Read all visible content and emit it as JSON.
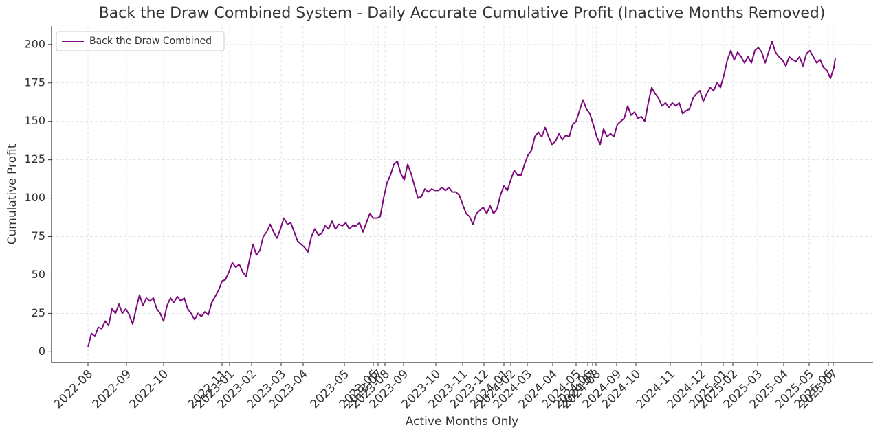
{
  "chart_data": {
    "type": "line",
    "title": "Back the Draw Combined System - Daily Accurate Cumulative Profit (Inactive Months Removed)",
    "xlabel": "Active Months Only",
    "ylabel": "Cumulative Profit",
    "legend": "upper left",
    "grid": true,
    "xlim": [
      -53,
      1142
    ],
    "ylim": [
      -7,
      212
    ],
    "yticks": [
      0,
      25,
      50,
      75,
      100,
      125,
      150,
      175,
      200
    ],
    "xticks": [
      {
        "value": 0,
        "label": "2022-08"
      },
      {
        "value": 56,
        "label": "2022-09"
      },
      {
        "value": 110,
        "label": "2022-10"
      },
      {
        "value": 195,
        "label": "2022-11"
      },
      {
        "value": 206,
        "label": "2023-01"
      },
      {
        "value": 238,
        "label": "2023-02"
      },
      {
        "value": 281,
        "label": "2023-03"
      },
      {
        "value": 313,
        "label": "2023-04"
      },
      {
        "value": 373,
        "label": "2023-05"
      },
      {
        "value": 415,
        "label": "2023-06"
      },
      {
        "value": 422,
        "label": "2023-07"
      },
      {
        "value": 432,
        "label": "2023-08"
      },
      {
        "value": 459,
        "label": "2023-09"
      },
      {
        "value": 506,
        "label": "2023-10"
      },
      {
        "value": 545,
        "label": "2023-11"
      },
      {
        "value": 576,
        "label": "2023-12"
      },
      {
        "value": 605,
        "label": "2024-01"
      },
      {
        "value": 615,
        "label": "2024-02"
      },
      {
        "value": 639,
        "label": "2024-03"
      },
      {
        "value": 676,
        "label": "2024-04"
      },
      {
        "value": 710,
        "label": "2024-05"
      },
      {
        "value": 727,
        "label": "2024-06"
      },
      {
        "value": 734,
        "label": "2024-07"
      },
      {
        "value": 739,
        "label": "2024-08"
      },
      {
        "value": 769,
        "label": "2024-09"
      },
      {
        "value": 797,
        "label": "2024-10"
      },
      {
        "value": 847,
        "label": "2024-11"
      },
      {
        "value": 892,
        "label": "2024-12"
      },
      {
        "value": 924,
        "label": "2025-01"
      },
      {
        "value": 938,
        "label": "2025-02"
      },
      {
        "value": 974,
        "label": "2025-03"
      },
      {
        "value": 1012,
        "label": "2025-04"
      },
      {
        "value": 1049,
        "label": "2025-05"
      },
      {
        "value": 1077,
        "label": "2025-06"
      },
      {
        "value": 1084,
        "label": "2025-07"
      }
    ],
    "x": [
      0,
      5,
      10,
      15,
      20,
      25,
      30,
      35,
      40,
      45,
      50,
      55,
      60,
      65,
      70,
      75,
      80,
      85,
      90,
      95,
      100,
      105,
      110,
      115,
      120,
      125,
      130,
      135,
      140,
      145,
      150,
      155,
      160,
      165,
      170,
      175,
      180,
      185,
      190,
      195,
      200,
      205,
      210,
      215,
      220,
      225,
      230,
      235,
      240,
      245,
      250,
      255,
      260,
      265,
      270,
      275,
      280,
      285,
      290,
      295,
      300,
      305,
      310,
      315,
      320,
      325,
      330,
      335,
      340,
      345,
      350,
      355,
      360,
      365,
      370,
      375,
      380,
      385,
      390,
      395,
      400,
      405,
      410,
      415,
      420,
      425,
      430,
      435,
      440,
      445,
      450,
      455,
      460,
      465,
      470,
      475,
      480,
      485,
      490,
      495,
      500,
      505,
      510,
      515,
      520,
      525,
      530,
      535,
      540,
      545,
      550,
      555,
      560,
      565,
      570,
      575,
      580,
      585,
      590,
      595,
      600,
      605,
      610,
      615,
      620,
      625,
      630,
      635,
      640,
      645,
      650,
      655,
      660,
      665,
      670,
      675,
      680,
      685,
      690,
      695,
      700,
      705,
      710,
      715,
      720,
      725,
      730,
      735,
      740,
      745,
      750,
      755,
      760,
      765,
      770,
      775,
      780,
      785,
      790,
      795,
      800,
      805,
      810,
      815,
      820,
      825,
      830,
      835,
      840,
      845,
      850,
      855,
      860,
      865,
      870,
      875,
      880,
      885,
      890,
      895,
      900,
      905,
      910,
      915,
      920,
      925,
      930,
      935,
      940,
      945,
      950,
      955,
      960,
      965,
      970,
      975,
      980,
      985,
      990,
      995,
      1000,
      1005,
      1010,
      1015,
      1020,
      1025,
      1030,
      1035,
      1040,
      1045,
      1050,
      1055,
      1060,
      1065,
      1070,
      1075,
      1080,
      1085,
      1087
    ],
    "series": [
      {
        "name": "Back the Draw Combined",
        "color": "#7b0a7b",
        "values": [
          3,
          12,
          10,
          16,
          15,
          20,
          17,
          28,
          25,
          31,
          25,
          28,
          24,
          18,
          28,
          37,
          30,
          35,
          33,
          35,
          28,
          25,
          20,
          30,
          35,
          32,
          36,
          33,
          35,
          28,
          25,
          21,
          25,
          23,
          26,
          24,
          32,
          36,
          40,
          46,
          47,
          52,
          58,
          55,
          57,
          52,
          49,
          60,
          70,
          63,
          66,
          75,
          78,
          83,
          78,
          74,
          80,
          87,
          83,
          84,
          78,
          72,
          70,
          68,
          65,
          75,
          80,
          76,
          77,
          82,
          80,
          85,
          80,
          83,
          82,
          84,
          80,
          82,
          82,
          84,
          78,
          84,
          90,
          87,
          87,
          88,
          100,
          110,
          115,
          122,
          124,
          116,
          112,
          122,
          116,
          108,
          100,
          101,
          106,
          104,
          106,
          105,
          105,
          107,
          105,
          107,
          104,
          104,
          102,
          96,
          90,
          88,
          83,
          90,
          92,
          94,
          90,
          95,
          90,
          93,
          102,
          108,
          105,
          112,
          118,
          115,
          115,
          122,
          128,
          131,
          140,
          143,
          140,
          146,
          140,
          135,
          137,
          142,
          138,
          141,
          140,
          148,
          150,
          157,
          164,
          158,
          155,
          148,
          140,
          135,
          145,
          140,
          142,
          140,
          148,
          150,
          152,
          160,
          154,
          156,
          152,
          153,
          150,
          162,
          172,
          168,
          165,
          160,
          162,
          159,
          162,
          160,
          162,
          155,
          157,
          158,
          165,
          168,
          170,
          163,
          168,
          172,
          170,
          175,
          172,
          180,
          190,
          196,
          190,
          195,
          192,
          188,
          192,
          188,
          196,
          198,
          195,
          188,
          195,
          202,
          195,
          192,
          190,
          186,
          192,
          190,
          189,
          192,
          186,
          194,
          196,
          192,
          188,
          190,
          185,
          183,
          178,
          185,
          191
        ]
      }
    ]
  }
}
